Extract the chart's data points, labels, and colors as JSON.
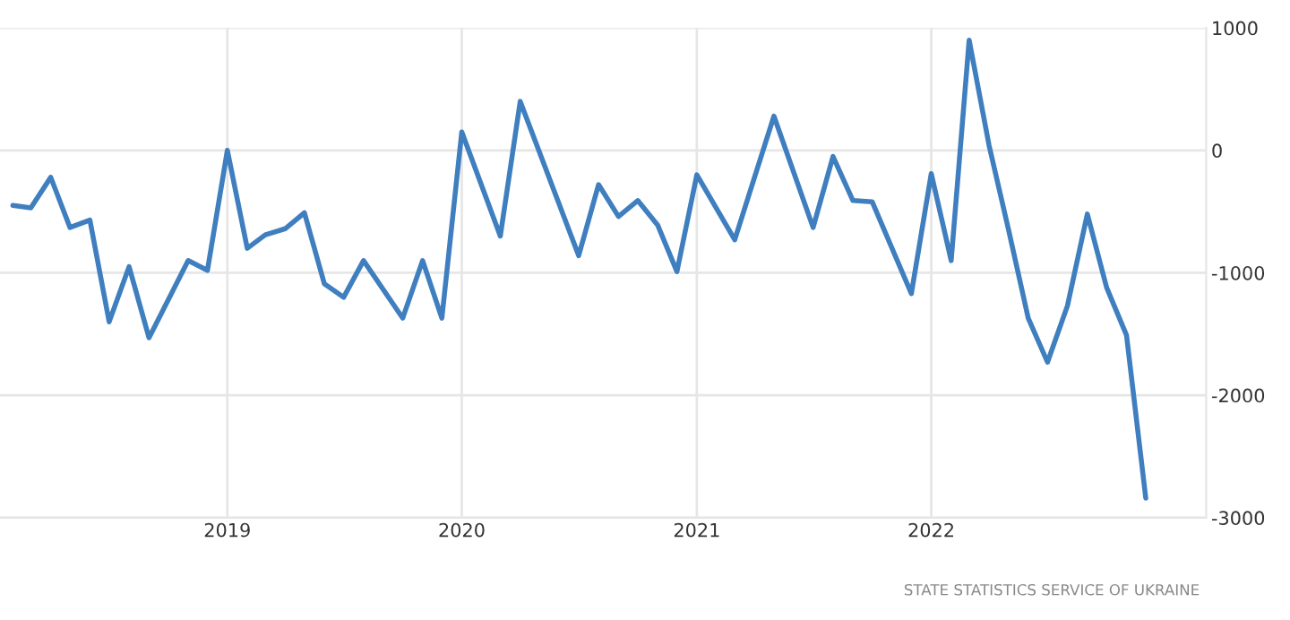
{
  "chart_data": {
    "type": "line",
    "x": [
      "2018-02",
      "2018-03",
      "2018-04",
      "2018-05",
      "2018-06",
      "2018-07",
      "2018-08",
      "2018-09",
      "2018-11",
      "2018-12",
      "2019-01",
      "2019-02",
      "2019-03",
      "2019-04",
      "2019-05",
      "2019-06",
      "2019-07",
      "2019-08",
      "2019-10",
      "2019-11",
      "2019-12",
      "2020-01",
      "2020-03",
      "2020-04",
      "2020-07",
      "2020-08",
      "2020-09",
      "2020-10",
      "2020-11",
      "2020-12",
      "2021-01",
      "2021-03",
      "2021-05",
      "2021-07",
      "2021-08",
      "2021-09",
      "2021-10",
      "2021-12",
      "2022-01",
      "2022-02",
      "2022-03",
      "2022-04",
      "2022-05",
      "2022-06",
      "2022-07",
      "2022-08",
      "2022-09",
      "2022-10",
      "2022-11",
      "2022-12"
    ],
    "series": [
      {
        "color": "#3f7fbf",
        "values": [
          -450,
          -470,
          -220,
          -630,
          -570,
          -1400,
          -950,
          -1530,
          -900,
          -980,
          0,
          -800,
          -690,
          -640,
          -510,
          -1090,
          -1200,
          -900,
          -1370,
          -900,
          -1370,
          150,
          -700,
          400,
          -860,
          -280,
          -540,
          -410,
          -610,
          -990,
          -200,
          -730,
          280,
          -630,
          -50,
          -410,
          -420,
          -1170,
          -190,
          -900,
          900,
          40,
          -640,
          -1370,
          -1730,
          -1270,
          -520,
          -1120,
          -1510,
          -2840
        ]
      }
    ],
    "xlim": [
      "2018-01-12",
      "2023-03-05"
    ],
    "xticks": [
      "2019",
      "2020",
      "2021",
      "2022"
    ],
    "ylim": [
      -3000,
      1000
    ],
    "yticks": [
      1000,
      0,
      -1000,
      -2000,
      -3000
    ],
    "grid": true,
    "marker": "none",
    "line_style": "solid",
    "annotations": [
      "STATE STATISTICS SERVICE OF UKRAINE"
    ]
  }
}
